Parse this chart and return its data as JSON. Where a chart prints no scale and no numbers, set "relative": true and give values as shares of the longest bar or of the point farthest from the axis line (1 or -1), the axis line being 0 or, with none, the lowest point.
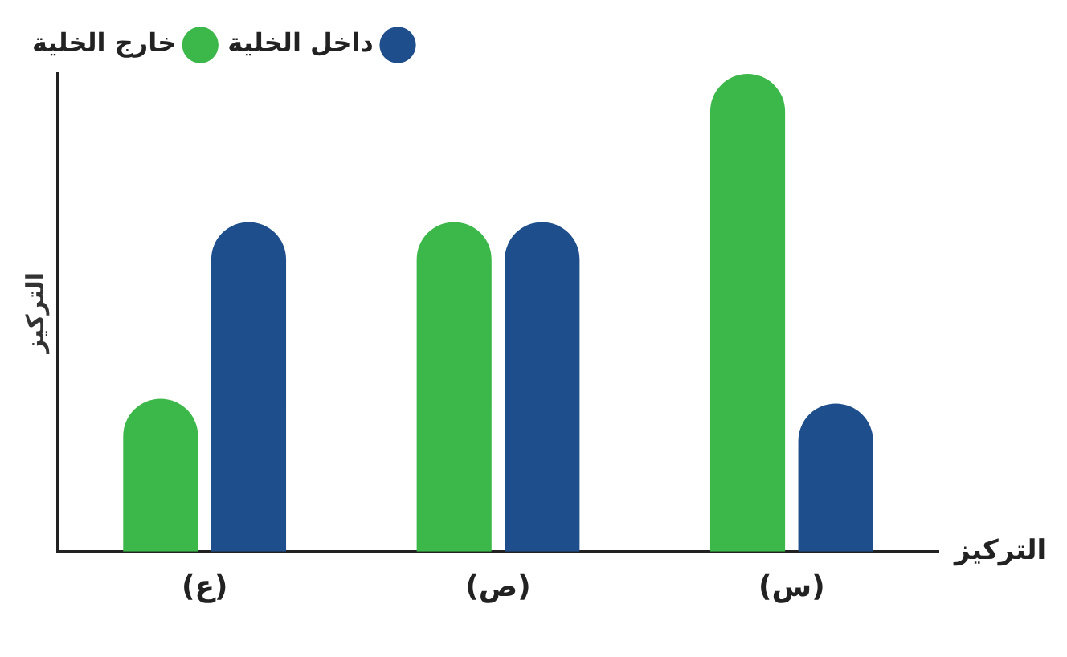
{
  "chart_data": {
    "type": "bar",
    "relative": true,
    "xlabel": "التركيز",
    "ylabel": "التركيز",
    "categories": [
      "(ع)",
      "(ص)",
      "(س)"
    ],
    "series": [
      {
        "name": "خارج الخلية",
        "color": "#3cb84a",
        "values": [
          0.32,
          0.69,
          1
        ]
      },
      {
        "name": "داخل الخلية",
        "color": "#1f4e8c",
        "values": [
          0.69,
          0.69,
          0.31
        ]
      }
    ],
    "legend": "top left",
    "grid": false
  }
}
